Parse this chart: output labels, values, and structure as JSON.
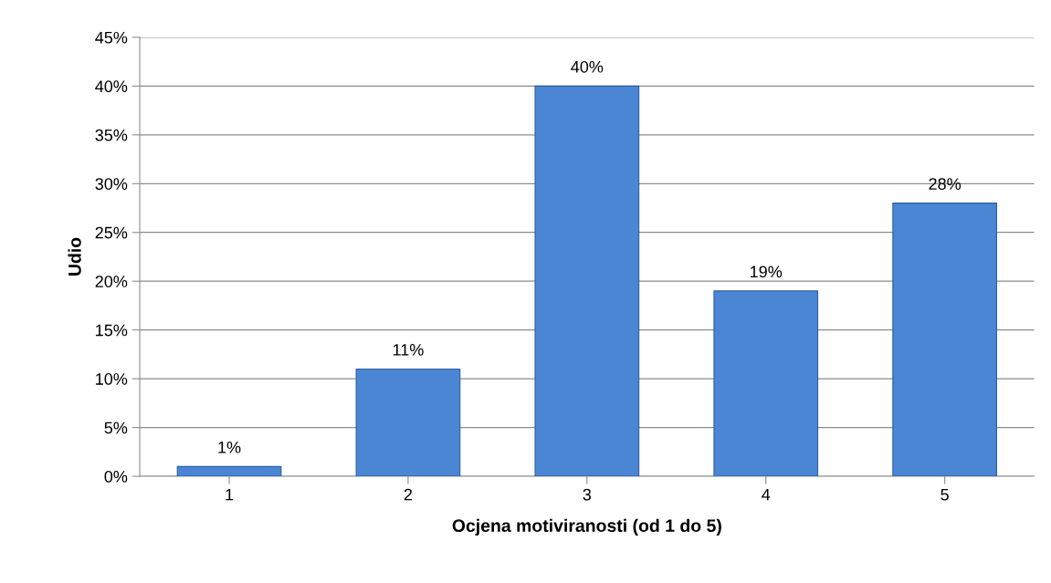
{
  "chart_data": {
    "type": "bar",
    "xlabel": "Ocjena motiviranosti (od 1 do 5)",
    "ylabel": "Udio",
    "categories": [
      "1",
      "2",
      "3",
      "4",
      "5"
    ],
    "values": [
      1,
      11,
      40,
      19,
      28
    ],
    "value_labels": [
      "1%",
      "11%",
      "40%",
      "19%",
      "28%"
    ],
    "color": "#4a86d4",
    "ylim": [
      0,
      45
    ],
    "yticks": [
      {
        "value": 0,
        "label": "0%"
      },
      {
        "value": 5,
        "label": "5%"
      },
      {
        "value": 10,
        "label": "10%"
      },
      {
        "value": 15,
        "label": "15%"
      },
      {
        "value": 20,
        "label": "20%"
      },
      {
        "value": 25,
        "label": "25%"
      },
      {
        "value": 30,
        "label": "30%"
      },
      {
        "value": 35,
        "label": "35%"
      },
      {
        "value": 40,
        "label": "40%"
      },
      {
        "value": 45,
        "label": "45%"
      }
    ],
    "grid": "y",
    "legend": false
  }
}
